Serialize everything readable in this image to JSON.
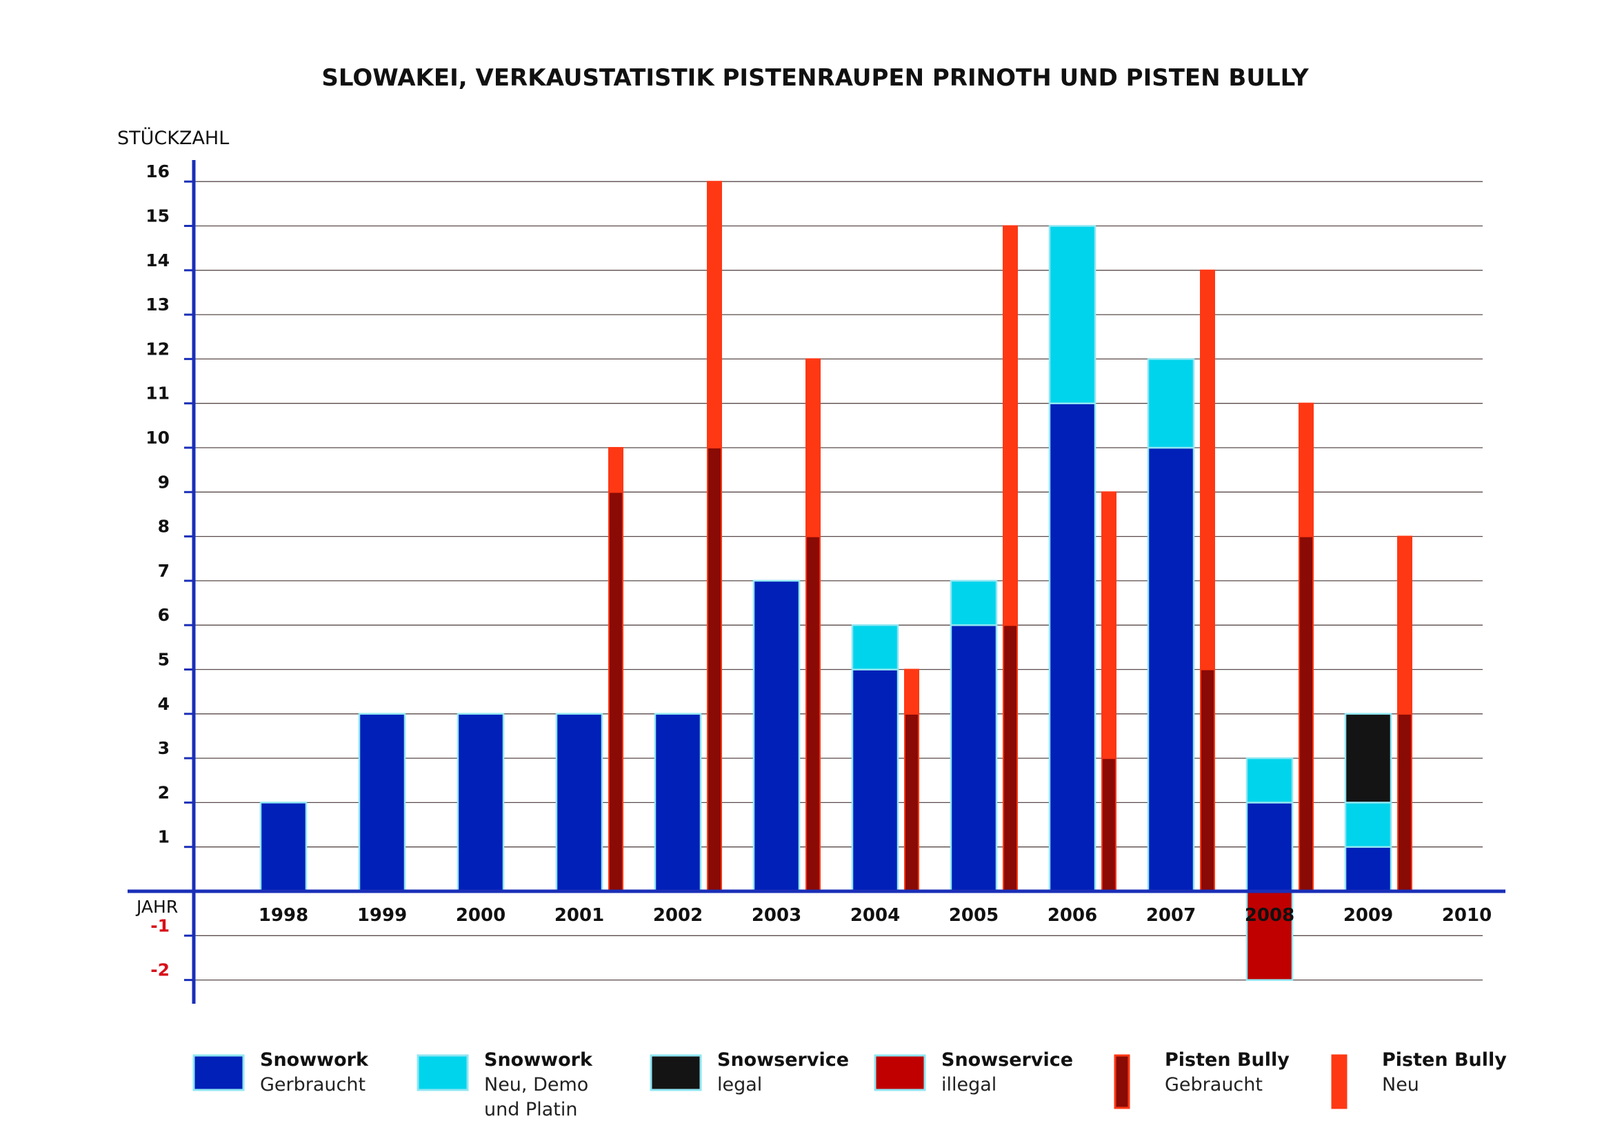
{
  "chart_data": {
    "type": "bar",
    "title": "SLOWAKEI, VERKAUSTATISTIK PISTENRAUPEN PRINOTH UND PISTEN BULLY",
    "ylabel": "STÜCKZAHL",
    "xlabel": "JAHR",
    "ylim": [
      -2,
      16
    ],
    "y_ticks": [
      "16",
      "15",
      "14",
      "13",
      "12",
      "11",
      "10",
      "9",
      "8",
      "7",
      "6",
      "5",
      "4",
      "3",
      "2",
      "1",
      "-1",
      "-2"
    ],
    "categories": [
      "1998",
      "1999",
      "2000",
      "2001",
      "2002",
      "2003",
      "2004",
      "2005",
      "2006",
      "2007",
      "2008",
      "2009",
      "2010"
    ],
    "grid": true,
    "legend_position": "bottom",
    "series": [
      {
        "name": "Snowwork Gerbraucht",
        "stack": "prinoth",
        "color": "#0020b8",
        "values": [
          2,
          4,
          4,
          4,
          4,
          7,
          5,
          6,
          11,
          10,
          2,
          1,
          0
        ]
      },
      {
        "name": "Snowwork Neu, Demo und Platin",
        "stack": "prinoth",
        "color": "#00d4ec",
        "values": [
          0,
          0,
          0,
          0,
          0,
          0,
          1,
          1,
          4,
          2,
          1,
          1,
          0
        ]
      },
      {
        "name": "Snowservice legal",
        "stack": "prinoth",
        "color": "#141414",
        "values": [
          0,
          0,
          0,
          0,
          0,
          0,
          0,
          0,
          0,
          0,
          0,
          2,
          0
        ]
      },
      {
        "name": "Snowservice illegal",
        "stack": "prinoth",
        "color": "#c00000",
        "values": [
          0,
          0,
          0,
          0,
          0,
          0,
          0,
          0,
          0,
          0,
          -2,
          0,
          0
        ]
      },
      {
        "name": "Pisten Bully Gebraucht",
        "stack": "pistenbully",
        "color": "#8a0a05",
        "values": [
          0,
          0,
          0,
          9,
          10,
          8,
          4,
          6,
          3,
          5,
          8,
          4,
          0
        ]
      },
      {
        "name": "Pisten Bully Neu",
        "stack": "pistenbully",
        "color": "#ff3814",
        "values": [
          0,
          0,
          0,
          1,
          6,
          4,
          1,
          9,
          6,
          9,
          3,
          4,
          0
        ]
      }
    ],
    "legend": [
      {
        "bold": "Snowwork",
        "lines": [
          "Gerbraucht"
        ],
        "color": "#0020b8"
      },
      {
        "bold": "Snowwork",
        "lines": [
          "Neu, Demo",
          "und Platin"
        ],
        "color": "#00d4ec"
      },
      {
        "bold": "Snowservice",
        "lines": [
          "legal"
        ],
        "color": "#141414"
      },
      {
        "bold": "Snowservice",
        "lines": [
          "illegal"
        ],
        "color": "#c00000"
      },
      {
        "bold": "Pisten Bully",
        "lines": [
          "Gebraucht"
        ],
        "color": "#8a0a05",
        "edge": "#ff3814"
      },
      {
        "bold": "Pisten Bully",
        "lines": [
          "Neu"
        ],
        "color": "#ff3814"
      }
    ],
    "colors": {
      "axis": "#1a2fb8",
      "grid": "#5a4a4a",
      "bar_edge": "#8fe6f2",
      "negative_tick": "#d7101a"
    }
  }
}
